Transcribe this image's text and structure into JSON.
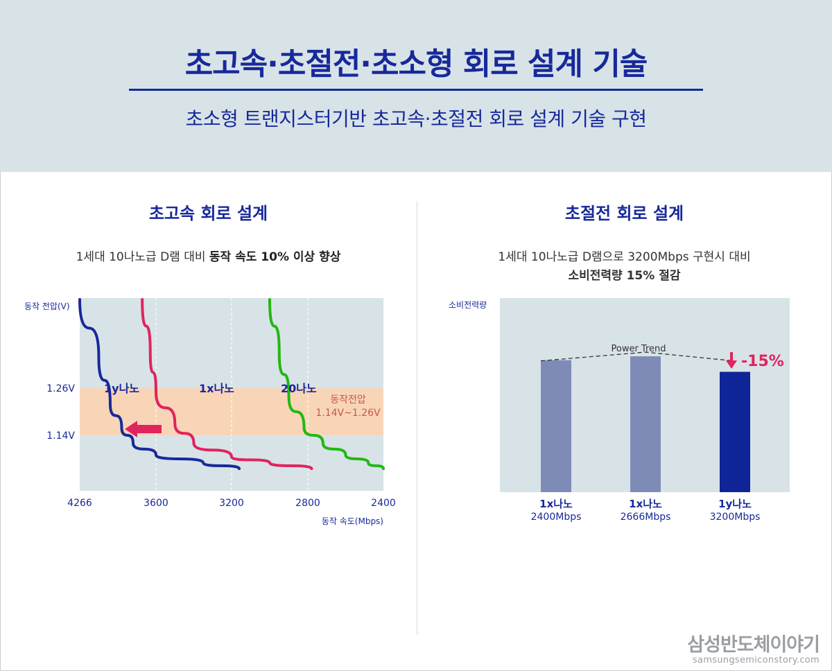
{
  "header": {
    "title": "초고속·초절전·초소형 회로 설계 기술",
    "subtitle": "초소형 트랜지스터기반 초고속·초절전 회로 설계 기술 구현"
  },
  "left_panel": {
    "title": "초고속 회로 설계",
    "desc_plain": "1세대 10나노급 D램 대비 ",
    "desc_bold": "동작 속도 10% 이상 향상"
  },
  "right_panel": {
    "title": "초절전 회로 설계",
    "desc_line1": "1세대 10나노급 D램으로 3200Mbps 구현시 대비",
    "desc_line2": "소비전력량 15% 절감"
  },
  "brand": {
    "name": "삼성반도체이야기",
    "url": "samsungsemiconstory.com"
  },
  "colors": {
    "navy": "#17299a",
    "red": "#e0245e",
    "green": "#22b814",
    "band": "#f9d5b8",
    "plot_bg": "#d8e3e8",
    "bar_light": "#7f8bb7",
    "bar_dark": "#0f2597"
  },
  "chart_data": [
    {
      "type": "line",
      "ylabel": "동작 전압(V)",
      "xlabel": "동작 속도(Mbps)",
      "x_ticks": [
        "4266",
        "3600",
        "3200",
        "2800",
        "2400"
      ],
      "y_ticks": [
        "1.26V",
        "1.14V"
      ],
      "band": {
        "label_line1": "동작전압",
        "label_line2": "1.14V~1.26V",
        "from": 1.14,
        "to": 1.26
      },
      "series": [
        {
          "name": "1y나노",
          "color": "#17299a",
          "points": [
            [
              4266,
              1.5
            ],
            [
              4100,
              1.34
            ],
            [
              4000,
              1.22
            ],
            [
              3900,
              1.16
            ],
            [
              3800,
              1.12
            ],
            [
              3600,
              1.09
            ],
            [
              3350,
              1.07
            ],
            [
              3160,
              1.055
            ]
          ]
        },
        {
          "name": "1x나노",
          "color": "#e0245e",
          "points": [
            [
              3720,
              1.5
            ],
            [
              3650,
              1.35
            ],
            [
              3600,
              1.25
            ],
            [
              3500,
              1.17
            ],
            [
              3400,
              1.12
            ],
            [
              3200,
              1.085
            ],
            [
              3000,
              1.07
            ],
            [
              2780,
              1.055
            ]
          ]
        },
        {
          "name": "20나노",
          "color": "#22b814",
          "points": [
            [
              3000,
              1.5
            ],
            [
              2950,
              1.35
            ],
            [
              2900,
              1.24
            ],
            [
              2820,
              1.16
            ],
            [
              2720,
              1.12
            ],
            [
              2600,
              1.09
            ],
            [
              2480,
              1.07
            ],
            [
              2400,
              1.055
            ]
          ]
        }
      ]
    },
    {
      "type": "bar",
      "ylabel": "소비전력량",
      "trend_label": "Power Trend",
      "reduction_label": "-15%",
      "categories": [
        "1x나노",
        "1x나노",
        "1y나노"
      ],
      "sub_labels": [
        "2400Mbps",
        "2666Mbps",
        "3200Mbps"
      ],
      "values": [
        0.68,
        0.7,
        0.62
      ],
      "highlight_index": 2
    }
  ]
}
